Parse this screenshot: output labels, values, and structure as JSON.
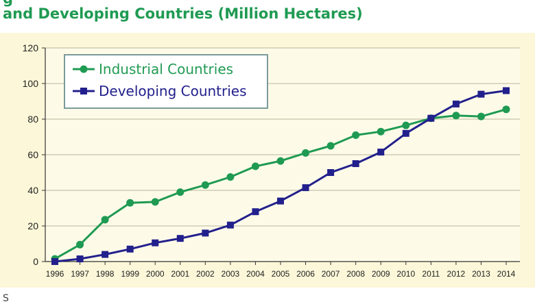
{
  "title_line_1": "g",
  "title_line_2": "and Developing Countries (Million Hectares)",
  "source_note": "S",
  "chart_data": {
    "type": "line",
    "title": "and Developing Countries (Million Hectares)",
    "xlabel": "",
    "ylabel": "",
    "categories": [
      "1996",
      "1997",
      "1998",
      "1999",
      "2000",
      "2001",
      "2002",
      "2003",
      "2004",
      "2005",
      "2006",
      "2007",
      "2008",
      "2009",
      "2010",
      "2011",
      "2012",
      "2013",
      "2014"
    ],
    "yticks": [
      0,
      20,
      40,
      60,
      80,
      100,
      120
    ],
    "ylim": [
      0,
      120
    ],
    "grid": "horizontal",
    "legend_position": "top-left",
    "series": [
      {
        "name": "Industrial Countries",
        "color": "#1f9a52",
        "marker": "circle",
        "values": [
          1.5,
          9.5,
          23.5,
          33,
          33.5,
          39,
          43,
          47.5,
          53.5,
          56.5,
          61,
          65,
          71,
          73,
          76.5,
          80.5,
          82,
          81.5,
          85.5
        ]
      },
      {
        "name": "Developing Countries",
        "color": "#22208c",
        "marker": "square",
        "values": [
          0,
          1.5,
          4,
          7,
          10.5,
          13,
          16,
          20.5,
          28,
          34,
          41.5,
          50,
          55,
          61.5,
          72,
          80.5,
          88.5,
          94,
          96
        ]
      }
    ]
  }
}
